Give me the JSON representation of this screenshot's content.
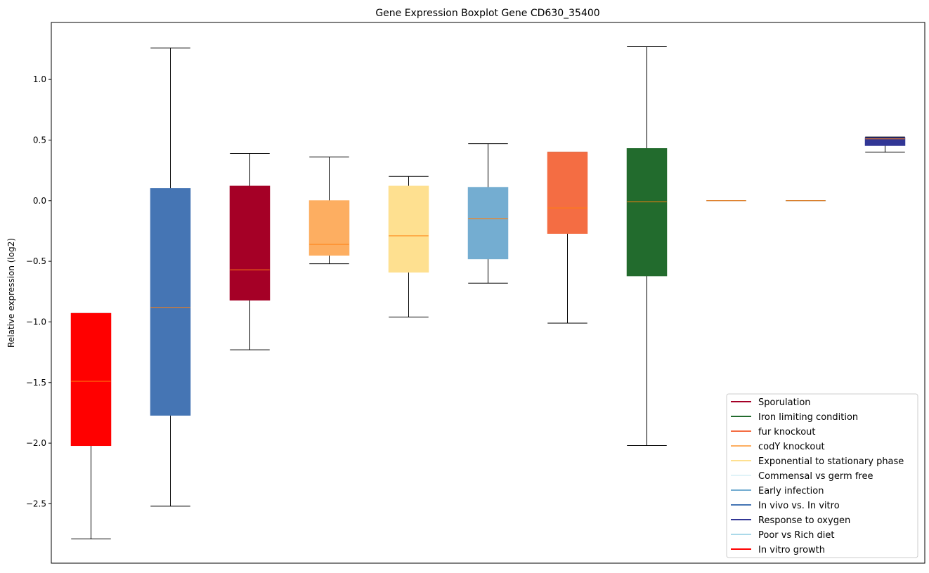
{
  "chart_data": {
    "type": "boxplot",
    "title": "Gene Expression Boxplot Gene CD630_35400",
    "xlabel": "",
    "ylabel": "Relative expression (log2)",
    "ylim": [
      -2.99,
      1.47
    ],
    "yticks": [
      -2.5,
      -2.0,
      -1.5,
      -1.0,
      -0.5,
      0.0,
      0.5,
      1.0
    ],
    "ytick_labels": [
      "−2.5",
      "−2.0",
      "−1.5",
      "−1.0",
      "−0.5",
      "0.0",
      "0.5",
      "1.0"
    ],
    "median_color": "#ff7f0e",
    "boxes": [
      {
        "name": "In vitro growth",
        "color": "#ff0000",
        "whislo": -2.79,
        "q1": -2.02,
        "med": -1.49,
        "q3": -0.93,
        "whishi": -0.93
      },
      {
        "name": "In vivo vs. In vitro",
        "color": "#4575b4",
        "whislo": -2.52,
        "q1": -1.77,
        "med": -0.88,
        "q3": 0.1,
        "whishi": 1.26
      },
      {
        "name": "Sporulation",
        "color": "#a50026",
        "whislo": -1.23,
        "q1": -0.82,
        "med": -0.57,
        "q3": 0.12,
        "whishi": 0.39
      },
      {
        "name": "codY knockout",
        "color": "#fdae61",
        "whislo": -0.52,
        "q1": -0.45,
        "med": -0.36,
        "q3": 0.0,
        "whishi": 0.36
      },
      {
        "name": "Exponential to stationary phase",
        "color": "#fee090",
        "whislo": -0.96,
        "q1": -0.59,
        "med": -0.29,
        "q3": 0.12,
        "whishi": 0.2
      },
      {
        "name": "Early infection",
        "color": "#74add1",
        "whislo": -0.68,
        "q1": -0.48,
        "med": -0.15,
        "q3": 0.11,
        "whishi": 0.47
      },
      {
        "name": "fur knockout",
        "color": "#f46d43",
        "whislo": -1.01,
        "q1": -0.27,
        "med": -0.06,
        "q3": 0.4,
        "whishi": 0.4
      },
      {
        "name": "Iron limiting condition",
        "color": "#226b2d",
        "whislo": -2.02,
        "q1": -0.62,
        "med": -0.01,
        "q3": 0.43,
        "whishi": 1.27
      },
      {
        "name": "Commensal vs germ free",
        "color": "#e0f3f8",
        "whislo": 0.0,
        "q1": 0.0,
        "med": 0.0,
        "q3": 0.0,
        "whishi": 0.0
      },
      {
        "name": "Poor vs Rich diet",
        "color": "#abd9e9",
        "whislo": 0.0,
        "q1": 0.0,
        "med": 0.0,
        "q3": 0.0,
        "whishi": 0.0
      },
      {
        "name": "Response to oxygen",
        "color": "#313695",
        "whislo": 0.4,
        "q1": 0.455,
        "med": 0.51,
        "q3": 0.52,
        "whishi": 0.525
      }
    ],
    "legend": {
      "placement": "lower-right",
      "entries": [
        {
          "label": "Sporulation",
          "color": "#a50026"
        },
        {
          "label": "Iron limiting condition",
          "color": "#226b2d"
        },
        {
          "label": "fur knockout",
          "color": "#f46d43"
        },
        {
          "label": "codY knockout",
          "color": "#fdae61"
        },
        {
          "label": "Exponential to stationary phase",
          "color": "#fee090"
        },
        {
          "label": "Commensal vs germ free",
          "color": "#e0f3f8"
        },
        {
          "label": "Early infection",
          "color": "#74add1"
        },
        {
          "label": "In vivo vs. In vitro",
          "color": "#4575b4"
        },
        {
          "label": "Response to oxygen",
          "color": "#313695"
        },
        {
          "label": "Poor vs Rich diet",
          "color": "#abd9e9"
        },
        {
          "label": "In vitro growth",
          "color": "#ff0000"
        }
      ]
    }
  }
}
